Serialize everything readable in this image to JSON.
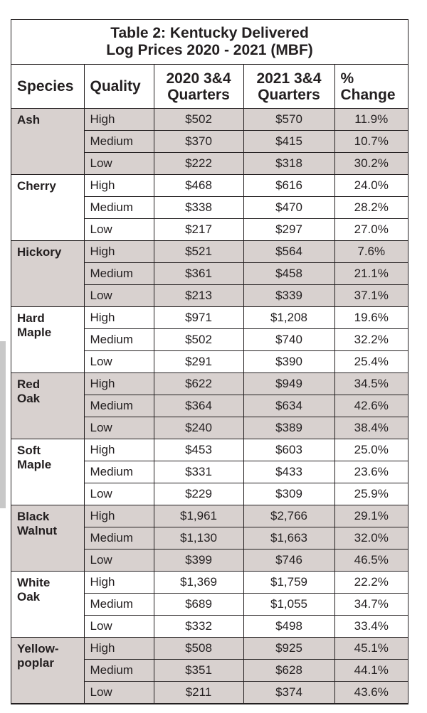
{
  "table": {
    "title_line1": "Table 2: Kentucky Delivered",
    "title_line2": "Log Prices 2020 - 2021 (MBF)",
    "headers": {
      "species": "Species",
      "quality": "Quality",
      "y2020_line1": "2020 3&4",
      "y2020_line2": "Quarters",
      "y2021_line1": "2021 3&4",
      "y2021_line2": "Quarters",
      "pct_line1": "%",
      "pct_line2": "Change"
    },
    "groups": [
      {
        "species_line1": "Ash",
        "species_line2": "",
        "rows": [
          {
            "quality": "High",
            "y2020": "$502",
            "y2021": "$570",
            "pct": "11.9%"
          },
          {
            "quality": "Medium",
            "y2020": "$370",
            "y2021": "$415",
            "pct": "10.7%"
          },
          {
            "quality": "Low",
            "y2020": "$222",
            "y2021": "$318",
            "pct": "30.2%"
          }
        ]
      },
      {
        "species_line1": "Cherry",
        "species_line2": "",
        "rows": [
          {
            "quality": "High",
            "y2020": "$468",
            "y2021": "$616",
            "pct": "24.0%"
          },
          {
            "quality": "Medium",
            "y2020": "$338",
            "y2021": "$470",
            "pct": "28.2%"
          },
          {
            "quality": "Low",
            "y2020": "$217",
            "y2021": "$297",
            "pct": "27.0%"
          }
        ]
      },
      {
        "species_line1": "Hickory",
        "species_line2": "",
        "rows": [
          {
            "quality": "High",
            "y2020": "$521",
            "y2021": "$564",
            "pct": "7.6%"
          },
          {
            "quality": "Medium",
            "y2020": "$361",
            "y2021": "$458",
            "pct": "21.1%"
          },
          {
            "quality": "Low",
            "y2020": "$213",
            "y2021": "$339",
            "pct": "37.1%"
          }
        ]
      },
      {
        "species_line1": "Hard",
        "species_line2": "Maple",
        "rows": [
          {
            "quality": "High",
            "y2020": "$971",
            "y2021": "$1,208",
            "pct": "19.6%"
          },
          {
            "quality": "Medium",
            "y2020": "$502",
            "y2021": "$740",
            "pct": "32.2%"
          },
          {
            "quality": "Low",
            "y2020": "$291",
            "y2021": "$390",
            "pct": "25.4%"
          }
        ]
      },
      {
        "species_line1": "Red",
        "species_line2": "Oak",
        "rows": [
          {
            "quality": "High",
            "y2020": "$622",
            "y2021": "$949",
            "pct": "34.5%"
          },
          {
            "quality": "Medium",
            "y2020": "$364",
            "y2021": "$634",
            "pct": "42.6%"
          },
          {
            "quality": "Low",
            "y2020": "$240",
            "y2021": "$389",
            "pct": "38.4%"
          }
        ]
      },
      {
        "species_line1": "Soft",
        "species_line2": "Maple",
        "rows": [
          {
            "quality": "High",
            "y2020": "$453",
            "y2021": "$603",
            "pct": "25.0%"
          },
          {
            "quality": "Medium",
            "y2020": "$331",
            "y2021": "$433",
            "pct": "23.6%"
          },
          {
            "quality": "Low",
            "y2020": "$229",
            "y2021": "$309",
            "pct": "25.9%"
          }
        ]
      },
      {
        "species_line1": "Black",
        "species_line2": "Walnut",
        "rows": [
          {
            "quality": "High",
            "y2020": "$1,961",
            "y2021": "$2,766",
            "pct": "29.1%"
          },
          {
            "quality": "Medium",
            "y2020": "$1,130",
            "y2021": "$1,663",
            "pct": "32.0%"
          },
          {
            "quality": "Low",
            "y2020": "$399",
            "y2021": "$746",
            "pct": "46.5%"
          }
        ]
      },
      {
        "species_line1": "White",
        "species_line2": "Oak",
        "rows": [
          {
            "quality": "High",
            "y2020": "$1,369",
            "y2021": "$1,759",
            "pct": "22.2%"
          },
          {
            "quality": "Medium",
            "y2020": "$689",
            "y2021": "$1,055",
            "pct": "34.7%"
          },
          {
            "quality": "Low",
            "y2020": "$332",
            "y2021": "$498",
            "pct": "33.4%"
          }
        ]
      },
      {
        "species_line1": "Yellow-",
        "species_line2": "poplar",
        "rows": [
          {
            "quality": "High",
            "y2020": "$508",
            "y2021": "$925",
            "pct": "45.1%"
          },
          {
            "quality": "Medium",
            "y2020": "$351",
            "y2021": "$628",
            "pct": "44.1%"
          },
          {
            "quality": "Low",
            "y2020": "$211",
            "y2021": "$374",
            "pct": "43.6%"
          }
        ]
      }
    ]
  },
  "colors": {
    "shade": "#d8d1cf",
    "border": "#231f20",
    "text": "#231f20"
  }
}
